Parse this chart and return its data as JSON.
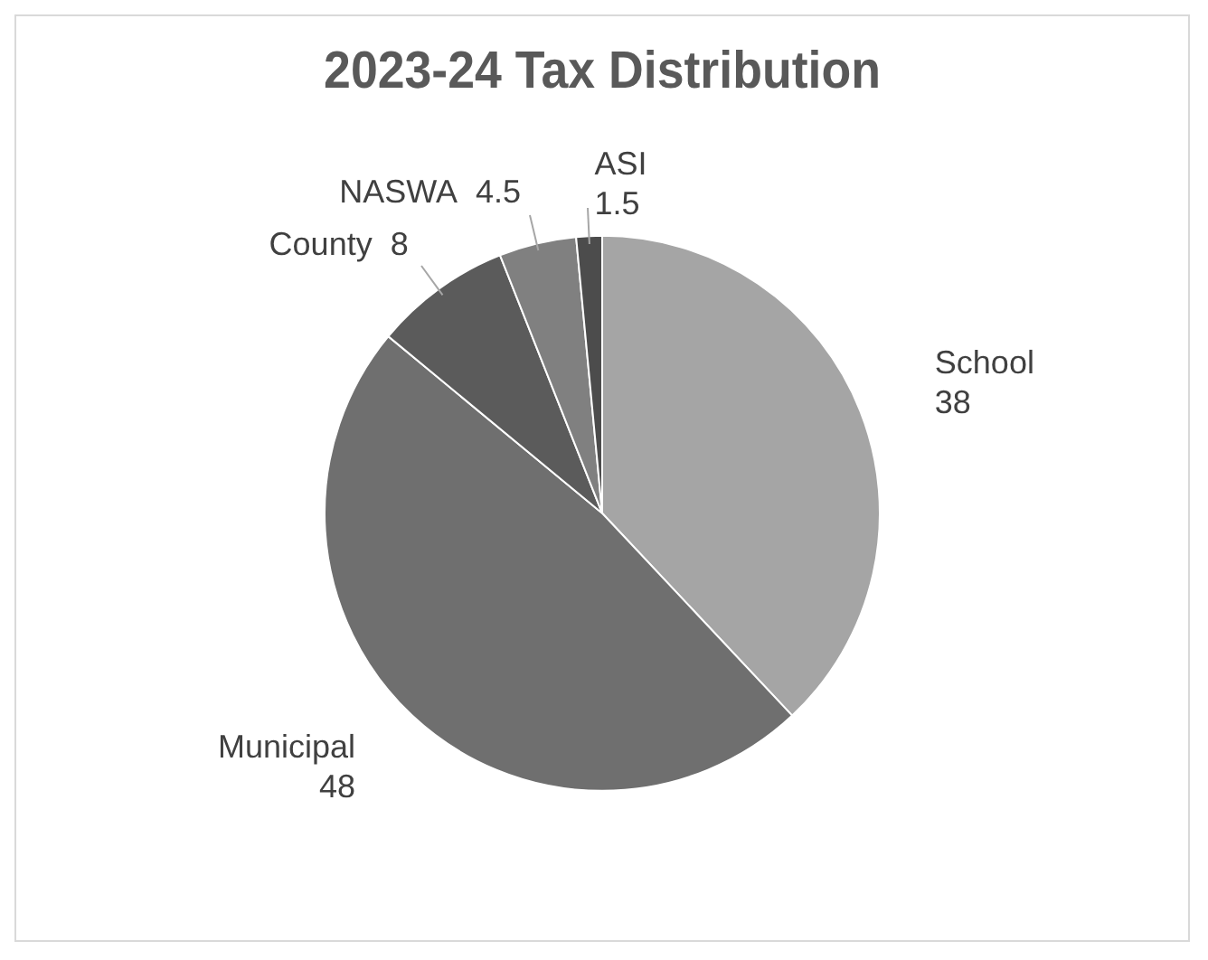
{
  "chart_data": {
    "type": "pie",
    "title": "2023-24 Tax Distribution",
    "categories": [
      "School",
      "Municipal",
      "County",
      "NASWA",
      "ASI"
    ],
    "values": [
      38,
      48,
      8,
      4.5,
      1.5
    ],
    "colors": [
      "#a5a5a5",
      "#6f6f6f",
      "#5b5b5b",
      "#808080",
      "#4c4c4c"
    ],
    "data_labels": true,
    "legend": false
  }
}
